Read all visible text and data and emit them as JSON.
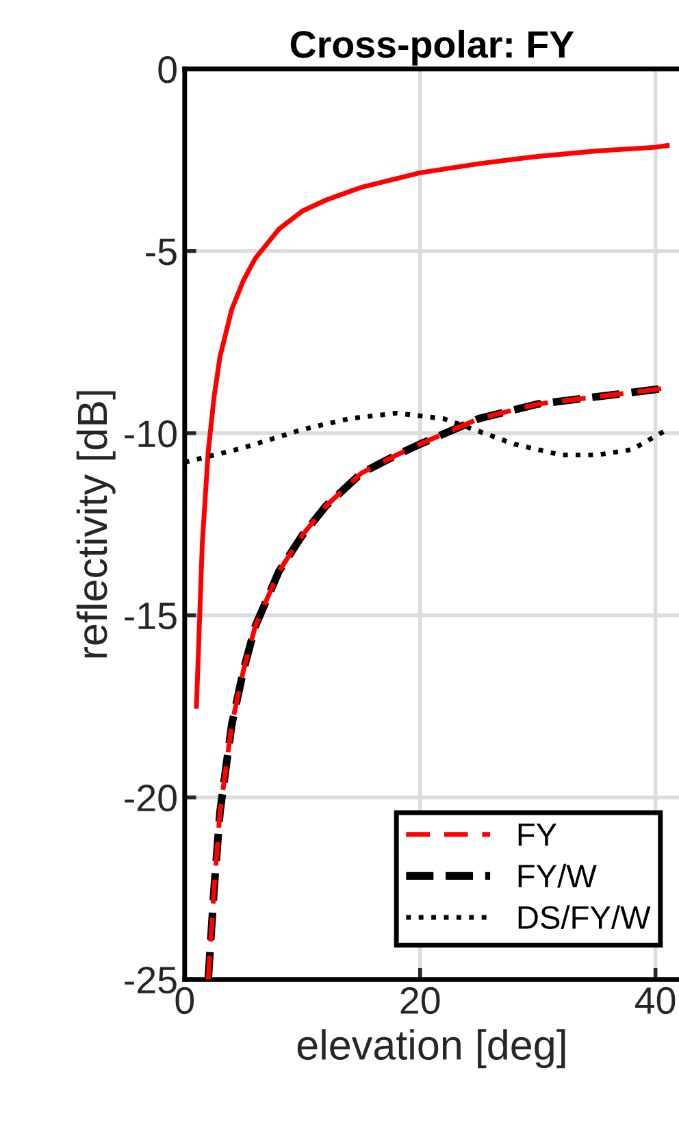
{
  "chart_data": {
    "type": "line",
    "title": "Cross-polar: FY",
    "xlabel": "elevation [deg]",
    "ylabel": "reflectivity [dB]",
    "xlim": [
      0,
      42
    ],
    "ylim": [
      -25,
      0
    ],
    "xticks": [
      0,
      20,
      40
    ],
    "yticks": [
      0,
      -5,
      -10,
      -15,
      -20,
      -25
    ],
    "grid": true,
    "legend": "bottom right",
    "series": [
      {
        "color": "#ff0000",
        "line_style": "solid",
        "x": [
          1,
          1.5,
          2,
          2.5,
          3,
          4,
          5,
          6,
          8,
          10,
          12,
          15,
          20,
          25,
          30,
          35,
          40,
          41
        ],
        "values": [
          -17.5,
          -13,
          -10.5,
          -9,
          -7.9,
          -6.6,
          -5.8,
          -5.2,
          -4.4,
          -3.9,
          -3.6,
          -3.25,
          -2.85,
          -2.6,
          -2.4,
          -2.25,
          -2.15,
          -2.1
        ]
      },
      {
        "name": "FY",
        "color": "#ff0000",
        "line_style": "dashed",
        "x": [
          2,
          2.5,
          3,
          4,
          5,
          6,
          8,
          10,
          12,
          15,
          18,
          20,
          25,
          30,
          35,
          40,
          41
        ],
        "values": [
          -25,
          -22.5,
          -20.4,
          -18,
          -16.5,
          -15.3,
          -13.8,
          -12.8,
          -12,
          -11.1,
          -10.6,
          -10.3,
          -9.6,
          -9.2,
          -9,
          -8.8,
          -8.75
        ]
      },
      {
        "name": "FY/W",
        "color": "#000000",
        "line_style": "dashed",
        "x": [
          2,
          2.5,
          3,
          4,
          5,
          6,
          8,
          10,
          12,
          15,
          18,
          20,
          25,
          30,
          35,
          40,
          41
        ],
        "values": [
          -25,
          -22.5,
          -20.4,
          -18,
          -16.5,
          -15.3,
          -13.8,
          -12.8,
          -12,
          -11.1,
          -10.6,
          -10.3,
          -9.6,
          -9.2,
          -9,
          -8.8,
          -8.75
        ]
      },
      {
        "name": "DS/FY/W",
        "color": "#000000",
        "line_style": "dotted",
        "x": [
          0,
          5,
          10,
          14,
          18,
          22,
          25,
          28,
          32,
          35,
          38,
          41
        ],
        "values": [
          -10.8,
          -10.4,
          -9.9,
          -9.6,
          -9.45,
          -9.6,
          -9.95,
          -10.3,
          -10.6,
          -10.6,
          -10.45,
          -9.9
        ]
      }
    ]
  }
}
